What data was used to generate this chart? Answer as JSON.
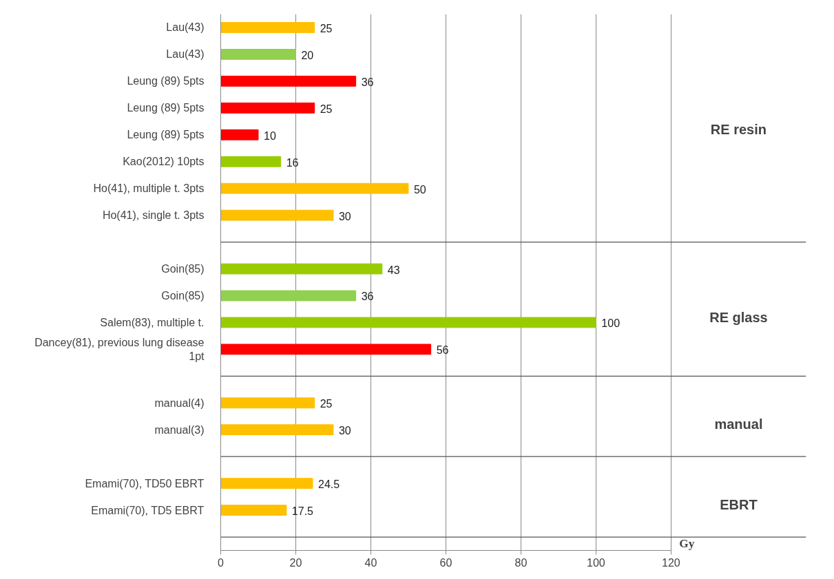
{
  "chart_data": {
    "type": "bar",
    "orientation": "horizontal",
    "categories": [
      "Lau(43)",
      "Lau(43)",
      "Leung (89) 5pts",
      "Leung (89) 5pts",
      "Leung (89) 5pts",
      "Kao(2012) 10pts",
      "Ho(41), multiple t. 3pts",
      "Ho(41), single t. 3pts",
      null,
      "Goin(85)",
      "Goin(85)",
      "Salem(83), multiple t.",
      "Dancey(81), previous lung disease\n1pt",
      null,
      "manual(4)",
      "manual(3)",
      null,
      "Emami(70), TD50 EBRT",
      "Emami(70), TD5 EBRT",
      null
    ],
    "values": [
      25,
      20,
      36,
      25,
      10,
      16,
      50,
      30,
      null,
      43,
      36,
      100,
      56,
      null,
      25,
      30,
      null,
      24.5,
      17.5,
      null
    ],
    "colors": [
      "#ffc000",
      "#92d050",
      "#ff0000",
      "#ff0000",
      "#ff0000",
      "#99cc00",
      "#ffc000",
      "#ffc000",
      "#ffc000",
      "#99cc00",
      "#92d050",
      "#99cc00",
      "#ff0000",
      "#ffc000",
      "#ffc000",
      "#ffc000",
      "#ffc000",
      "#ffc000",
      "#ffc000",
      "#ffc000"
    ],
    "data_labels": true,
    "xlim": [
      0,
      120
    ],
    "xticks": [
      0,
      20,
      40,
      60,
      80,
      100,
      120
    ],
    "grid": "x",
    "annotations": [
      "RE resin",
      "RE glass",
      "manual",
      "EBRT",
      "Gy"
    ]
  }
}
